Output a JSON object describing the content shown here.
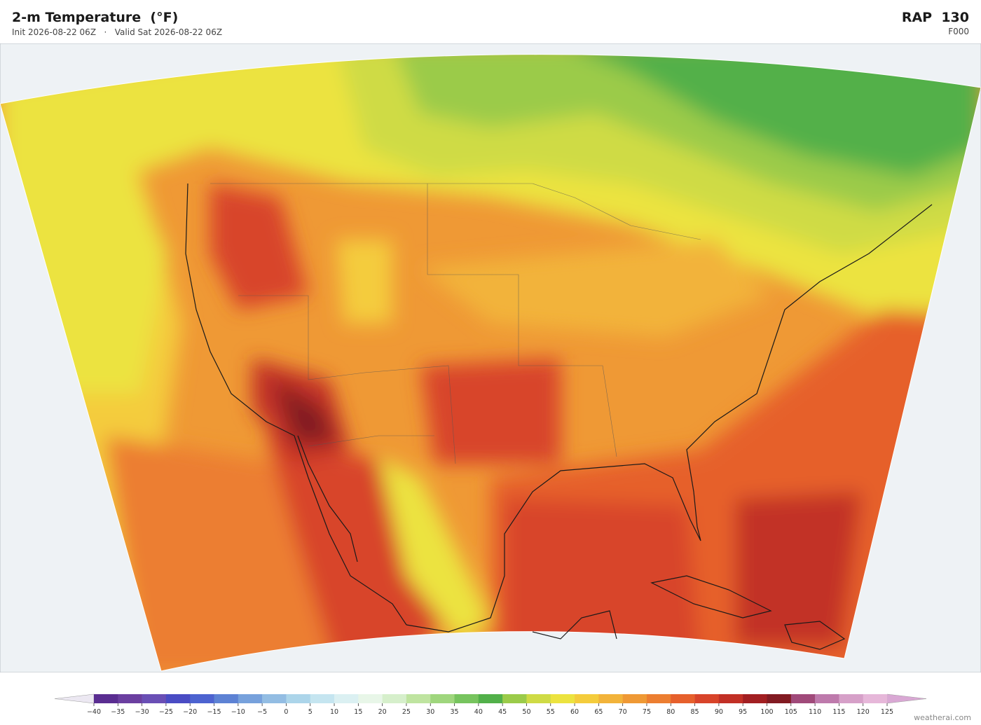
{
  "header": {
    "title": "2-m Temperature  (°F)",
    "init": "Init 2026-08-22 06Z",
    "separator": "·",
    "valid": "Valid Sat 2026-08-22 06Z",
    "model": "RAP  130",
    "forecast_hour": "F000"
  },
  "colorbar": {
    "ticks": [
      {
        "value": -40,
        "label": "−40"
      },
      {
        "value": -35,
        "label": "−35"
      },
      {
        "value": -30,
        "label": "−30"
      },
      {
        "value": -25,
        "label": "−25"
      },
      {
        "value": -20,
        "label": "−20"
      },
      {
        "value": -15,
        "label": "−15"
      },
      {
        "value": -10,
        "label": "−10"
      },
      {
        "value": -5,
        "label": "−5"
      },
      0,
      5,
      10,
      15,
      20,
      25,
      30,
      35,
      40,
      45,
      50,
      55,
      60,
      65,
      70,
      75,
      80,
      85,
      90,
      95,
      100,
      105,
      110,
      115,
      120,
      125
    ],
    "colors": [
      "#5a2d91",
      "#6b3fa0",
      "#6a4fb5",
      "#4a4cc4",
      "#4d63d0",
      "#5d82d4",
      "#77a1dc",
      "#93bde3",
      "#acd5ea",
      "#c5e5f0",
      "#dbf0f2",
      "#e8f6e8",
      "#d6efcb",
      "#bfe4a0",
      "#9fd67d",
      "#77c45e",
      "#52b04a",
      "#9bcb4a",
      "#cfdb45",
      "#ece33f",
      "#f4cc3c",
      "#f2b33a",
      "#ef9935",
      "#ec7e31",
      "#e6602c",
      "#d8442a",
      "#c23026",
      "#a21f22",
      "#821b22",
      "#a04a7a",
      "#be7aac",
      "#d6a0c8",
      "#e6b7d9"
    ],
    "under_color": "#ece8f2",
    "over_color": "#d9a8d4"
  },
  "watermark": "weatherai.com"
}
